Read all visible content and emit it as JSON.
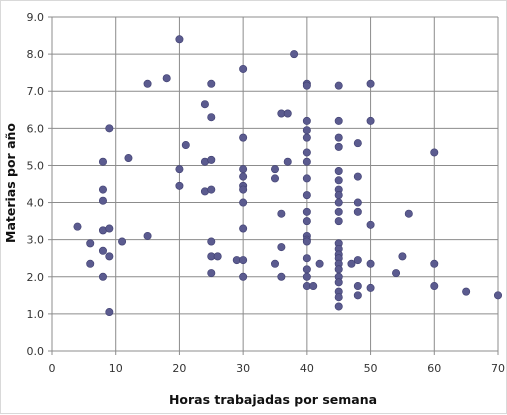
{
  "chart_data": {
    "type": "scatter",
    "title": "",
    "xlabel": "Horas trabajadas por semana",
    "ylabel": "Materias por año",
    "xlim": [
      0,
      70
    ],
    "ylim": [
      0,
      9
    ],
    "xticks": [
      "0",
      "10",
      "20",
      "30",
      "40",
      "50",
      "60",
      "70"
    ],
    "yticks": [
      "0.0",
      "1.0",
      "2.0",
      "3.0",
      "4.0",
      "5.0",
      "6.0",
      "7.0",
      "8.0",
      "9.0"
    ],
    "grid": true,
    "marker_color": "#5b5b8f",
    "points": [
      [
        4,
        3.35
      ],
      [
        6,
        2.9
      ],
      [
        6,
        2.35
      ],
      [
        8,
        5.1
      ],
      [
        8,
        4.35
      ],
      [
        8,
        4.05
      ],
      [
        8,
        3.25
      ],
      [
        8,
        2.7
      ],
      [
        8,
        2.0
      ],
      [
        9,
        6.0
      ],
      [
        9,
        3.3
      ],
      [
        9,
        2.55
      ],
      [
        9,
        1.05
      ],
      [
        11,
        2.95
      ],
      [
        12,
        5.2
      ],
      [
        15,
        7.2
      ],
      [
        15,
        3.1
      ],
      [
        18,
        7.35
      ],
      [
        20,
        8.4
      ],
      [
        20,
        4.9
      ],
      [
        20,
        4.45
      ],
      [
        21,
        5.55
      ],
      [
        24,
        6.65
      ],
      [
        24,
        5.1
      ],
      [
        24,
        4.3
      ],
      [
        25,
        7.2
      ],
      [
        25,
        6.3
      ],
      [
        25,
        5.15
      ],
      [
        25,
        4.35
      ],
      [
        25,
        2.95
      ],
      [
        25,
        2.55
      ],
      [
        25,
        2.1
      ],
      [
        26,
        2.55
      ],
      [
        29,
        2.45
      ],
      [
        30,
        7.6
      ],
      [
        30,
        5.75
      ],
      [
        30,
        4.9
      ],
      [
        30,
        4.7
      ],
      [
        30,
        4.45
      ],
      [
        30,
        4.35
      ],
      [
        30,
        4.0
      ],
      [
        30,
        3.3
      ],
      [
        30,
        2.45
      ],
      [
        30,
        2.0
      ],
      [
        35,
        4.9
      ],
      [
        35,
        4.65
      ],
      [
        35,
        2.35
      ],
      [
        36,
        6.4
      ],
      [
        36,
        3.7
      ],
      [
        36,
        2.8
      ],
      [
        36,
        2.0
      ],
      [
        37,
        6.4
      ],
      [
        37,
        5.1
      ],
      [
        38,
        8.0
      ],
      [
        40,
        7.2
      ],
      [
        40,
        7.15
      ],
      [
        40,
        6.2
      ],
      [
        40,
        5.95
      ],
      [
        40,
        5.75
      ],
      [
        40,
        5.35
      ],
      [
        40,
        5.1
      ],
      [
        40,
        4.65
      ],
      [
        40,
        4.2
      ],
      [
        40,
        3.75
      ],
      [
        40,
        3.5
      ],
      [
        40,
        3.1
      ],
      [
        40,
        3.0
      ],
      [
        40,
        2.95
      ],
      [
        40,
        2.5
      ],
      [
        40,
        2.2
      ],
      [
        40,
        2.0
      ],
      [
        40,
        1.75
      ],
      [
        41,
        1.75
      ],
      [
        42,
        2.35
      ],
      [
        45,
        7.15
      ],
      [
        45,
        6.2
      ],
      [
        45,
        5.75
      ],
      [
        45,
        5.5
      ],
      [
        45,
        4.85
      ],
      [
        45,
        4.6
      ],
      [
        45,
        4.35
      ],
      [
        45,
        4.2
      ],
      [
        45,
        4.0
      ],
      [
        45,
        3.75
      ],
      [
        45,
        3.5
      ],
      [
        45,
        2.9
      ],
      [
        45,
        2.75
      ],
      [
        45,
        2.6
      ],
      [
        45,
        2.5
      ],
      [
        45,
        2.35
      ],
      [
        45,
        2.2
      ],
      [
        45,
        2.0
      ],
      [
        45,
        1.85
      ],
      [
        45,
        1.6
      ],
      [
        45,
        1.45
      ],
      [
        45,
        1.2
      ],
      [
        47,
        2.35
      ],
      [
        48,
        5.6
      ],
      [
        48,
        4.7
      ],
      [
        48,
        4.0
      ],
      [
        48,
        3.75
      ],
      [
        48,
        2.45
      ],
      [
        48,
        1.75
      ],
      [
        48,
        1.5
      ],
      [
        50,
        7.2
      ],
      [
        50,
        6.2
      ],
      [
        50,
        3.4
      ],
      [
        50,
        2.35
      ],
      [
        50,
        1.7
      ],
      [
        54,
        2.1
      ],
      [
        55,
        2.55
      ],
      [
        56,
        3.7
      ],
      [
        60,
        5.35
      ],
      [
        60,
        2.35
      ],
      [
        60,
        1.75
      ],
      [
        65,
        1.6
      ],
      [
        70,
        1.5
      ]
    ]
  }
}
